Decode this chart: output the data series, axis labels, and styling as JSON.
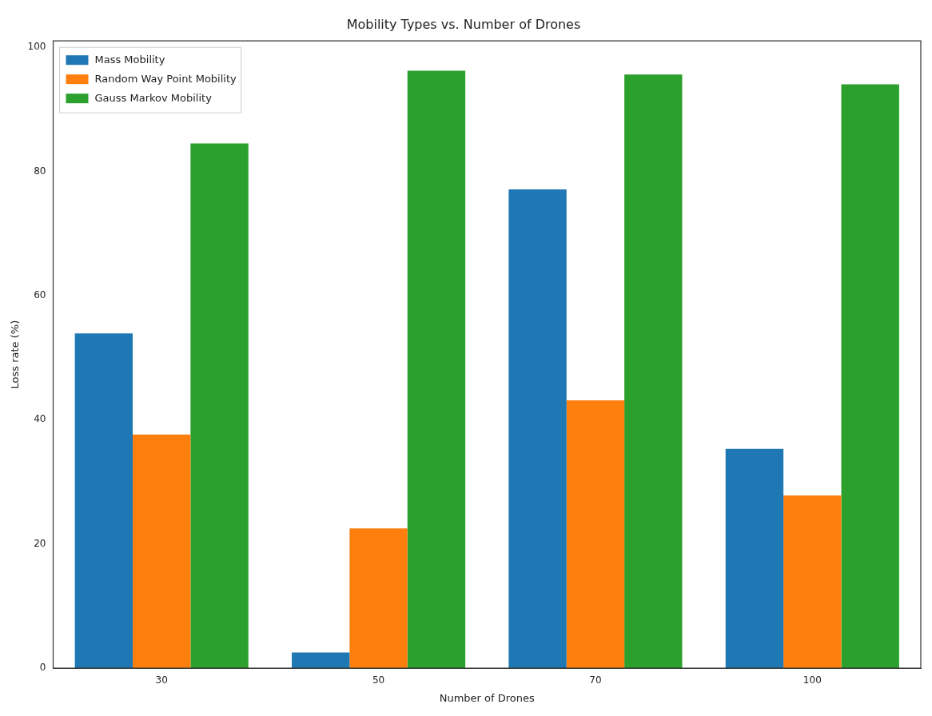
{
  "chart_data": {
    "type": "bar",
    "title": "Mobility Types vs. Number of Drones",
    "xlabel": "Number of Drones",
    "ylabel": "Loss rate (%)",
    "categories": [
      "30",
      "50",
      "70",
      "100"
    ],
    "series": [
      {
        "name": "Mass Mobility",
        "color": "#1f77b4",
        "values": [
          53.9,
          2.5,
          77.1,
          35.3
        ]
      },
      {
        "name": "Random Way Point Mobility",
        "color": "#ff7f0e",
        "values": [
          37.6,
          22.5,
          43.1,
          27.8
        ]
      },
      {
        "name": "Gauss Markov Mobility",
        "color": "#2ca02c",
        "values": [
          84.5,
          96.2,
          95.6,
          94.0
        ]
      }
    ],
    "ylim": [
      0,
      101
    ],
    "yticks": [
      0,
      20,
      40,
      60,
      80,
      100
    ],
    "grid": false,
    "legend": "top left"
  }
}
